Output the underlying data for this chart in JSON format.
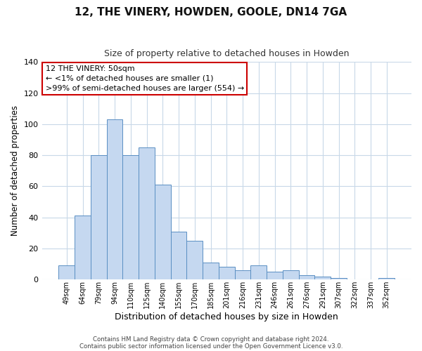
{
  "title": "12, THE VINERY, HOWDEN, GOOLE, DN14 7GA",
  "subtitle": "Size of property relative to detached houses in Howden",
  "xlabel": "Distribution of detached houses by size in Howden",
  "ylabel": "Number of detached properties",
  "categories": [
    "49sqm",
    "64sqm",
    "79sqm",
    "94sqm",
    "110sqm",
    "125sqm",
    "140sqm",
    "155sqm",
    "170sqm",
    "185sqm",
    "201sqm",
    "216sqm",
    "231sqm",
    "246sqm",
    "261sqm",
    "276sqm",
    "291sqm",
    "307sqm",
    "322sqm",
    "337sqm",
    "352sqm"
  ],
  "values": [
    9,
    41,
    80,
    103,
    80,
    85,
    61,
    31,
    25,
    11,
    8,
    6,
    9,
    5,
    6,
    3,
    2,
    1,
    0,
    0,
    1
  ],
  "bar_color": "#c5d8f0",
  "bar_edge_color": "#5a8fc3",
  "ylim": [
    0,
    140
  ],
  "yticks": [
    0,
    20,
    40,
    60,
    80,
    100,
    120,
    140
  ],
  "annotation_title": "12 THE VINERY: 50sqm",
  "annotation_line1": "← <1% of detached houses are smaller (1)",
  "annotation_line2": ">99% of semi-detached houses are larger (554) →",
  "annotation_border_color": "#cc0000",
  "footer_line1": "Contains HM Land Registry data © Crown copyright and database right 2024.",
  "footer_line2": "Contains public sector information licensed under the Open Government Licence v3.0.",
  "background_color": "#ffffff",
  "grid_color": "#c8d8e8"
}
